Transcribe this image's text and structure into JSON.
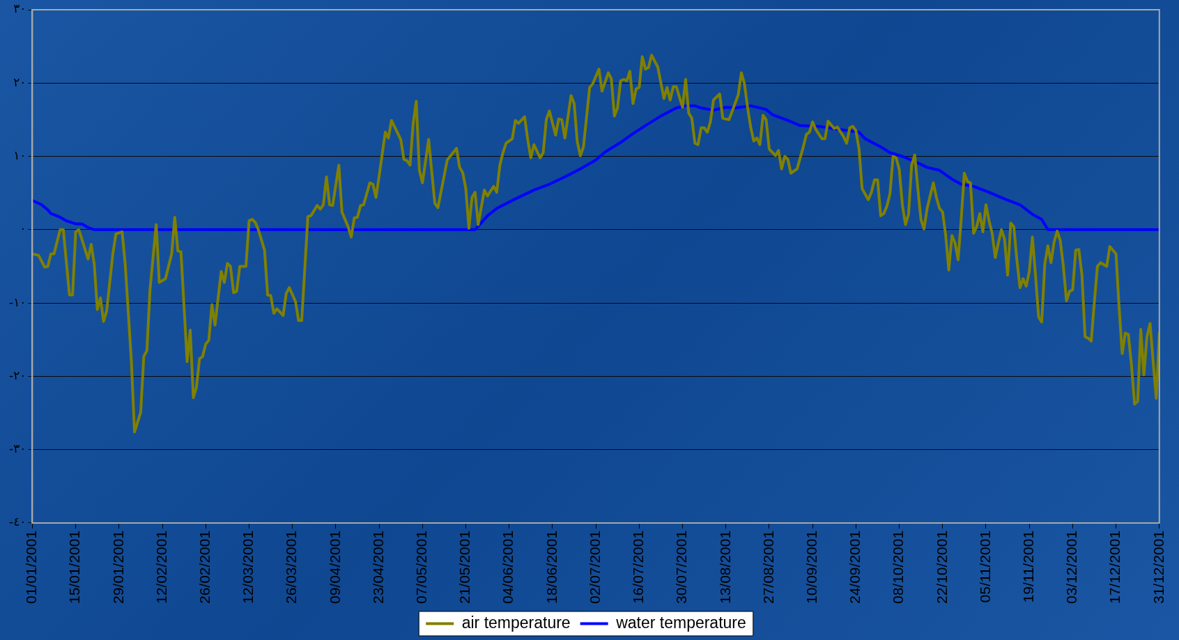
{
  "chart_data": {
    "type": "line",
    "legend": "bottom",
    "grid": "y",
    "marker": "none",
    "line_style": "solid",
    "xlim": [
      "2001-01-01",
      "2001-12-31"
    ],
    "xticks": [
      {
        "value": "2001-01-01",
        "label": "01/01/2001"
      },
      {
        "value": "2001-01-15",
        "label": "15/01/2001"
      },
      {
        "value": "2001-01-29",
        "label": "29/01/2001"
      },
      {
        "value": "2001-02-12",
        "label": "12/02/2001"
      },
      {
        "value": "2001-02-26",
        "label": "26/02/2001"
      },
      {
        "value": "2001-03-12",
        "label": "12/03/2001"
      },
      {
        "value": "2001-03-26",
        "label": "26/03/2001"
      },
      {
        "value": "2001-04-09",
        "label": "09/04/2001"
      },
      {
        "value": "2001-04-23",
        "label": "23/04/2001"
      },
      {
        "value": "2001-05-07",
        "label": "07/05/2001"
      },
      {
        "value": "2001-05-21",
        "label": "21/05/2001"
      },
      {
        "value": "2001-06-04",
        "label": "04/06/2001"
      },
      {
        "value": "2001-06-18",
        "label": "18/06/2001"
      },
      {
        "value": "2001-07-02",
        "label": "02/07/2001"
      },
      {
        "value": "2001-07-16",
        "label": "16/07/2001"
      },
      {
        "value": "2001-07-30",
        "label": "30/07/2001"
      },
      {
        "value": "2001-08-13",
        "label": "13/08/2001"
      },
      {
        "value": "2001-08-27",
        "label": "27/08/2001"
      },
      {
        "value": "2001-09-10",
        "label": "10/09/2001"
      },
      {
        "value": "2001-09-24",
        "label": "24/09/2001"
      },
      {
        "value": "2001-10-08",
        "label": "08/10/2001"
      },
      {
        "value": "2001-10-22",
        "label": "22/10/2001"
      },
      {
        "value": "2001-11-05",
        "label": "05/11/2001"
      },
      {
        "value": "2001-11-19",
        "label": "19/11/2001"
      },
      {
        "value": "2001-12-03",
        "label": "03/12/2001"
      },
      {
        "value": "2001-12-17",
        "label": "17/12/2001"
      },
      {
        "value": "2001-12-31",
        "label": "31/12/2001"
      }
    ],
    "ylim": [
      -40,
      30
    ],
    "yticks": [
      {
        "value": 30,
        "label": "٣٠"
      },
      {
        "value": 20,
        "label": "٢٠"
      },
      {
        "value": 10,
        "label": "١٠"
      },
      {
        "value": 0,
        "label": "٠"
      },
      {
        "value": -10,
        "label": "-١٠"
      },
      {
        "value": -20,
        "label": "-٢٠"
      },
      {
        "value": -30,
        "label": "-٣٠"
      },
      {
        "value": -40,
        "label": "-٤٠"
      }
    ],
    "series": [
      {
        "name": "air temperature",
        "color": "#808000",
        "x": [
          "2001-01-01",
          "2001-01-03",
          "2001-01-05",
          "2001-01-06",
          "2001-01-07",
          "2001-01-08",
          "2001-01-10",
          "2001-01-11",
          "2001-01-13",
          "2001-01-14",
          "2001-01-15",
          "2001-01-16",
          "2001-01-17",
          "2001-01-19",
          "2001-01-20",
          "2001-01-21",
          "2001-01-22",
          "2001-01-23",
          "2001-01-24",
          "2001-01-25",
          "2001-01-27",
          "2001-01-28",
          "2001-01-30",
          "2001-01-31",
          "2001-02-02",
          "2001-02-03",
          "2001-02-05",
          "2001-02-06",
          "2001-02-07",
          "2001-02-08",
          "2001-02-10",
          "2001-02-11",
          "2001-02-13",
          "2001-02-15",
          "2001-02-16",
          "2001-02-17",
          "2001-02-18",
          "2001-02-20",
          "2001-02-21",
          "2001-02-22",
          "2001-02-23",
          "2001-02-24",
          "2001-02-25",
          "2001-02-26",
          "2001-02-27",
          "2001-02-28",
          "2001-03-01",
          "2001-03-03",
          "2001-03-04",
          "2001-03-05",
          "2001-03-06",
          "2001-03-07",
          "2001-03-08",
          "2001-03-09",
          "2001-03-11",
          "2001-03-12",
          "2001-03-13",
          "2001-03-14",
          "2001-03-15",
          "2001-03-17",
          "2001-03-18",
          "2001-03-19",
          "2001-03-20",
          "2001-03-21",
          "2001-03-23",
          "2001-03-24",
          "2001-03-25",
          "2001-03-27",
          "2001-03-28",
          "2001-03-29",
          "2001-03-31",
          "2001-04-01",
          "2001-04-03",
          "2001-04-04",
          "2001-04-05",
          "2001-04-06",
          "2001-04-07",
          "2001-04-08",
          "2001-04-10",
          "2001-04-11",
          "2001-04-13",
          "2001-04-14",
          "2001-04-15",
          "2001-04-16",
          "2001-04-17",
          "2001-04-18",
          "2001-04-20",
          "2001-04-21",
          "2001-04-22",
          "2001-04-23",
          "2001-04-25",
          "2001-04-26",
          "2001-04-27",
          "2001-04-30",
          "2001-05-01",
          "2001-05-02",
          "2001-05-03",
          "2001-05-04",
          "2001-05-05",
          "2001-05-06",
          "2001-05-07",
          "2001-05-09",
          "2001-05-11",
          "2001-05-12",
          "2001-05-15",
          "2001-05-18",
          "2001-05-19",
          "2001-05-20",
          "2001-05-21",
          "2001-05-22",
          "2001-05-23",
          "2001-05-24",
          "2001-05-25",
          "2001-05-27",
          "2001-05-28",
          "2001-05-30",
          "2001-05-31",
          "2001-06-01",
          "2001-06-02",
          "2001-06-03",
          "2001-06-05",
          "2001-06-06",
          "2001-06-07",
          "2001-06-09",
          "2001-06-10",
          "2001-06-11",
          "2001-06-12",
          "2001-06-14",
          "2001-06-15",
          "2001-06-16",
          "2001-06-17",
          "2001-06-19",
          "2001-06-20",
          "2001-06-21",
          "2001-06-22",
          "2001-06-24",
          "2001-06-25",
          "2001-06-26",
          "2001-06-27",
          "2001-06-28",
          "2001-06-30",
          "2001-07-01",
          "2001-07-03",
          "2001-07-04",
          "2001-07-06",
          "2001-07-07",
          "2001-07-08",
          "2001-07-09",
          "2001-07-10",
          "2001-07-11",
          "2001-07-12",
          "2001-07-13",
          "2001-07-14",
          "2001-07-15",
          "2001-07-16",
          "2001-07-17",
          "2001-07-18",
          "2001-07-19",
          "2001-07-20",
          "2001-07-22",
          "2001-07-24",
          "2001-07-25",
          "2001-07-26",
          "2001-07-27",
          "2001-07-28",
          "2001-07-30",
          "2001-07-31",
          "2001-08-01",
          "2001-08-02",
          "2001-08-03",
          "2001-08-04",
          "2001-08-05",
          "2001-08-06",
          "2001-08-07",
          "2001-08-08",
          "2001-08-09",
          "2001-08-11",
          "2001-08-12",
          "2001-08-14",
          "2001-08-15",
          "2001-08-17",
          "2001-08-18",
          "2001-08-19",
          "2001-08-20",
          "2001-08-21",
          "2001-08-22",
          "2001-08-23",
          "2001-08-24",
          "2001-08-25",
          "2001-08-26",
          "2001-08-27",
          "2001-08-29",
          "2001-08-30",
          "2001-08-31",
          "2001-09-01",
          "2001-09-02",
          "2001-09-03",
          "2001-09-05",
          "2001-09-07",
          "2001-09-08",
          "2001-09-09",
          "2001-09-10",
          "2001-09-11",
          "2001-09-13",
          "2001-09-14",
          "2001-09-15",
          "2001-09-17",
          "2001-09-18",
          "2001-09-20",
          "2001-09-21",
          "2001-09-22",
          "2001-09-23",
          "2001-09-24",
          "2001-09-25",
          "2001-09-26",
          "2001-09-28",
          "2001-09-29",
          "2001-09-30",
          "2001-10-01",
          "2001-10-02",
          "2001-10-03",
          "2001-10-04",
          "2001-10-05",
          "2001-10-06",
          "2001-10-07",
          "2001-10-08",
          "2001-10-09",
          "2001-10-10",
          "2001-10-11",
          "2001-10-12",
          "2001-10-13",
          "2001-10-14",
          "2001-10-15",
          "2001-10-16",
          "2001-10-17",
          "2001-10-19",
          "2001-10-20",
          "2001-10-21",
          "2001-10-22",
          "2001-10-23",
          "2001-10-24",
          "2001-10-25",
          "2001-10-26",
          "2001-10-27",
          "2001-10-28",
          "2001-10-29",
          "2001-10-30",
          "2001-10-31",
          "2001-11-01",
          "2001-11-02",
          "2001-11-03",
          "2001-11-04",
          "2001-11-05",
          "2001-11-06",
          "2001-11-07",
          "2001-11-08",
          "2001-11-09",
          "2001-11-10",
          "2001-11-11",
          "2001-11-12",
          "2001-11-13",
          "2001-11-14",
          "2001-11-15",
          "2001-11-16",
          "2001-11-17",
          "2001-11-18",
          "2001-11-19",
          "2001-11-20",
          "2001-11-21",
          "2001-11-22",
          "2001-11-23",
          "2001-11-24",
          "2001-11-25",
          "2001-11-26",
          "2001-11-27",
          "2001-11-28",
          "2001-11-29",
          "2001-11-30",
          "2001-12-01",
          "2001-12-02",
          "2001-12-03",
          "2001-12-04",
          "2001-12-05",
          "2001-12-06",
          "2001-12-07",
          "2001-12-08",
          "2001-12-09",
          "2001-12-10",
          "2001-12-11",
          "2001-12-12",
          "2001-12-14",
          "2001-12-15",
          "2001-12-17",
          "2001-12-18",
          "2001-12-19",
          "2001-12-20",
          "2001-12-21",
          "2001-12-22",
          "2001-12-23",
          "2001-12-24",
          "2001-12-25",
          "2001-12-26",
          "2001-12-27",
          "2001-12-28",
          "2001-12-29",
          "2001-12-30",
          "2001-12-31"
        ],
        "values": [
          -3.3,
          -3.5,
          -5.1,
          -5,
          -3.3,
          -3.3,
          0,
          0,
          -8.9,
          -8.9,
          -0.3,
          0,
          -1.3,
          -4,
          -2,
          -4.7,
          -10.9,
          -9.3,
          -12.5,
          -11.1,
          -3.3,
          -0.6,
          -0.3,
          -4.7,
          -18,
          -27.6,
          -24.9,
          -17.3,
          -16.5,
          -8.2,
          0.7,
          -7.2,
          -6.7,
          -3.3,
          1.7,
          -2.9,
          -3,
          -18,
          -13.7,
          -22.9,
          -21.5,
          -17.6,
          -17.3,
          -15.6,
          -15.1,
          -10.2,
          -13,
          -5.7,
          -7.2,
          -4.6,
          -5,
          -8.6,
          -8.4,
          -5,
          -5,
          1.2,
          1.4,
          1,
          0,
          -2.8,
          -8.9,
          -9,
          -11.4,
          -10.8,
          -11.7,
          -8.7,
          -7.9,
          -9.8,
          -12.4,
          -12.4,
          1.8,
          1.9,
          3.3,
          2.8,
          3.4,
          7.2,
          3.4,
          3.3,
          8.8,
          2.4,
          0.4,
          -1,
          1.6,
          1.7,
          3.3,
          3.4,
          6.4,
          6.2,
          4.4,
          7.3,
          13.3,
          12.5,
          14.9,
          12.3,
          9.6,
          9.4,
          8.8,
          14.5,
          17.5,
          8.1,
          6.4,
          12.3,
          3.6,
          3,
          9.5,
          11.1,
          8.5,
          7.8,
          5.6,
          0.2,
          4.4,
          5.1,
          0.7,
          5.4,
          4.6,
          5.9,
          5.1,
          8.8,
          10.5,
          11.8,
          12.4,
          14.9,
          14.5,
          15.4,
          12.3,
          9.8,
          11.6,
          9.8,
          10.5,
          15,
          16.2,
          12.9,
          15.1,
          15,
          12.5,
          18.3,
          17.2,
          12,
          10.1,
          11.3,
          19.4,
          19.9,
          21.9,
          18.9,
          21.4,
          20.6,
          15.5,
          16.6,
          20.3,
          20.5,
          20.3,
          21.6,
          17.2,
          19.2,
          19.4,
          23.6,
          21.9,
          22.1,
          23.8,
          22.2,
          17.9,
          19.4,
          17.7,
          19.5,
          19.5,
          16.7,
          20.5,
          15.9,
          15.2,
          11.8,
          11.6,
          13.9,
          13.9,
          13.3,
          14.7,
          17.7,
          18.5,
          15.2,
          15,
          16.1,
          18.4,
          21.4,
          19.9,
          16.7,
          14,
          12.1,
          12.5,
          11.6,
          15.6,
          15,
          11,
          10.1,
          10.8,
          8.3,
          10,
          9.6,
          7.7,
          8.3,
          11.3,
          13,
          13.3,
          14.7,
          13.7,
          12.4,
          12.4,
          14.8,
          13.8,
          14,
          12.7,
          11.8,
          13.9,
          14.1,
          13.5,
          11,
          5.6,
          4.1,
          5.1,
          6.8,
          6.8,
          1.9,
          2.2,
          3.2,
          4.9,
          10,
          9.8,
          8.2,
          3.4,
          0.7,
          2.1,
          8.8,
          10.2,
          5.6,
          1.4,
          0.1,
          2.9,
          6.4,
          4.4,
          2.9,
          2.4,
          -0.8,
          -5.5,
          -0.8,
          -1.8,
          -4.1,
          1.4,
          7.7,
          6.6,
          6.4,
          -0.5,
          0.4,
          2.2,
          -0.3,
          3.4,
          1.2,
          -0.5,
          -3.8,
          -1.8,
          0,
          -1.3,
          -6.2,
          0.9,
          0.4,
          -4.2,
          -7.9,
          -6.7,
          -7.7,
          -5.7,
          -1,
          -6.2,
          -11.9,
          -12.6,
          -4.7,
          -2.2,
          -4.5,
          -1.7,
          -0.2,
          -1.5,
          -5,
          -9.7,
          -8.4,
          -8.2,
          -2.8,
          -2.7,
          -6.2,
          -14.6,
          -14.8,
          -15.2,
          -9.9,
          -5,
          -4.5,
          -5,
          -2.3,
          -3.3,
          -10.6,
          -16.9,
          -14.1,
          -14.3,
          -18.5,
          -23.8,
          -23.4,
          -13.6,
          -19.8,
          -14.6,
          -12.8,
          -18,
          -23,
          -14.1
        ]
      },
      {
        "name": "water temperature",
        "color": "#0000ff",
        "x": [
          "2001-01-01",
          "2001-01-04",
          "2001-01-06",
          "2001-01-07",
          "2001-01-10",
          "2001-01-12",
          "2001-01-15",
          "2001-01-17",
          "2001-01-19",
          "2001-01-21",
          "2001-05-24",
          "2001-05-28",
          "2001-05-31",
          "2001-06-06",
          "2001-06-12",
          "2001-06-17",
          "2001-06-22",
          "2001-06-27",
          "2001-07-02",
          "2001-07-05",
          "2001-07-10",
          "2001-07-14",
          "2001-07-18",
          "2001-07-23",
          "2001-07-28",
          "2001-07-31",
          "2001-08-03",
          "2001-08-05",
          "2001-08-09",
          "2001-08-13",
          "2001-08-16",
          "2001-08-21",
          "2001-08-26",
          "2001-08-28",
          "2001-09-02",
          "2001-09-06",
          "2001-09-12",
          "2001-09-18",
          "2001-09-25",
          "2001-09-27",
          "2001-10-02",
          "2001-10-05",
          "2001-10-09",
          "2001-10-13",
          "2001-10-17",
          "2001-10-21",
          "2001-10-25",
          "2001-10-28",
          "2001-11-01",
          "2001-11-06",
          "2001-11-11",
          "2001-11-16",
          "2001-11-20",
          "2001-11-23",
          "2001-11-25",
          "2001-12-31"
        ],
        "values": [
          4,
          3.4,
          2.7,
          2.2,
          1.7,
          1.2,
          0.8,
          0.8,
          0.3,
          0,
          0,
          1.9,
          2.9,
          4.2,
          5.4,
          6.2,
          7.2,
          8.3,
          9.5,
          10.6,
          11.9,
          13.1,
          14.2,
          15.5,
          16.6,
          16.9,
          16.9,
          16.6,
          16.3,
          16.7,
          16.6,
          16.9,
          16.4,
          15.7,
          14.9,
          14.2,
          14.1,
          13.7,
          13.3,
          12.4,
          11.3,
          10.5,
          10,
          9.3,
          8.5,
          8.1,
          6.9,
          6.2,
          5.9,
          5.1,
          4.2,
          3.4,
          2.1,
          1.4,
          0,
          0
        ]
      }
    ]
  }
}
